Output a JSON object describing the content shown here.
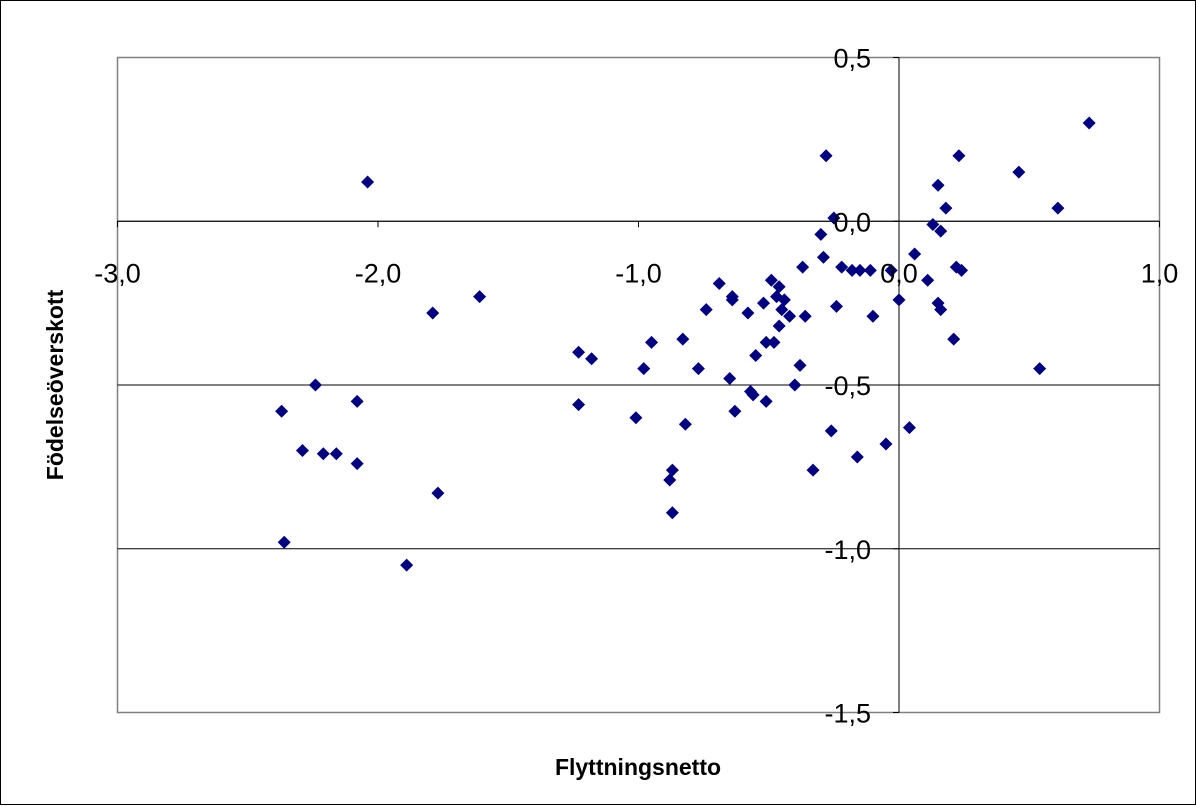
{
  "chart_data": {
    "type": "scatter",
    "title": "",
    "xlabel": "Flyttningsnetto",
    "ylabel": "Födelseöverskott",
    "xlim": [
      -3.0,
      1.0
    ],
    "ylim": [
      -1.5,
      0.5
    ],
    "x_ticks": [
      -3.0,
      -2.0,
      -1.0,
      0.0,
      1.0
    ],
    "y_ticks": [
      -1.5,
      -1.0,
      -0.5,
      0.0,
      0.5
    ],
    "x_tick_labels": [
      "-3,0",
      "-2,0",
      "-1,0",
      "0,0",
      "1,0"
    ],
    "y_tick_labels": [
      "-1,5",
      "-1,0",
      "-0,5",
      "0,0",
      "0,5"
    ],
    "grid": "horizontal",
    "legend": "none",
    "marker": "diamond",
    "colors": {
      "marker": "#000080",
      "axis": "#000000",
      "grid": "#000000"
    },
    "series": [
      {
        "points": [
          [
            -2.04,
            0.12
          ],
          [
            -2.37,
            -0.58
          ],
          [
            -2.36,
            -0.98
          ],
          [
            -2.29,
            -0.7
          ],
          [
            -2.24,
            -0.5
          ],
          [
            -2.21,
            -0.71
          ],
          [
            -2.16,
            -0.71
          ],
          [
            -2.08,
            -0.55
          ],
          [
            -2.08,
            -0.74
          ],
          [
            -1.79,
            -0.28
          ],
          [
            -1.77,
            -0.83
          ],
          [
            -1.89,
            -1.05
          ],
          [
            -1.61,
            -0.23
          ],
          [
            -1.23,
            -0.4
          ],
          [
            -1.18,
            -0.42
          ],
          [
            -1.23,
            -0.56
          ],
          [
            -1.01,
            -0.6
          ],
          [
            -0.98,
            -0.45
          ],
          [
            -0.95,
            -0.37
          ],
          [
            -0.88,
            -0.79
          ],
          [
            -0.87,
            -0.76
          ],
          [
            -0.87,
            -0.89
          ],
          [
            -0.83,
            -0.36
          ],
          [
            -0.82,
            -0.62
          ],
          [
            -0.77,
            -0.45
          ],
          [
            -0.74,
            -0.27
          ],
          [
            -0.69,
            -0.19
          ],
          [
            -0.64,
            -0.23
          ],
          [
            -0.64,
            -0.24
          ],
          [
            -0.65,
            -0.48
          ],
          [
            -0.63,
            -0.58
          ],
          [
            -0.58,
            -0.28
          ],
          [
            -0.57,
            -0.52
          ],
          [
            -0.56,
            -0.53
          ],
          [
            -0.55,
            -0.41
          ],
          [
            -0.52,
            -0.25
          ],
          [
            -0.51,
            -0.37
          ],
          [
            -0.51,
            -0.55
          ],
          [
            -0.49,
            -0.18
          ],
          [
            -0.48,
            -0.37
          ],
          [
            -0.47,
            -0.23
          ],
          [
            -0.46,
            -0.2
          ],
          [
            -0.46,
            -0.32
          ],
          [
            -0.45,
            -0.27
          ],
          [
            -0.44,
            -0.24
          ],
          [
            -0.42,
            -0.29
          ],
          [
            -0.4,
            -0.5
          ],
          [
            -0.38,
            -0.44
          ],
          [
            -0.37,
            -0.14
          ],
          [
            -0.36,
            -0.29
          ],
          [
            -0.33,
            -0.76
          ],
          [
            -0.3,
            -0.04
          ],
          [
            -0.29,
            -0.11
          ],
          [
            -0.28,
            0.2
          ],
          [
            -0.26,
            -0.64
          ],
          [
            -0.25,
            0.01
          ],
          [
            -0.24,
            -0.26
          ],
          [
            -0.22,
            -0.14
          ],
          [
            -0.18,
            -0.15
          ],
          [
            -0.16,
            -0.72
          ],
          [
            -0.15,
            -0.15
          ],
          [
            -0.11,
            -0.15
          ],
          [
            -0.1,
            -0.29
          ],
          [
            -0.05,
            -0.68
          ],
          [
            -0.03,
            -0.15
          ],
          [
            0.0,
            -0.24
          ],
          [
            0.04,
            -0.63
          ],
          [
            0.06,
            -0.1
          ],
          [
            0.11,
            -0.18
          ],
          [
            0.13,
            -0.01
          ],
          [
            0.15,
            -0.25
          ],
          [
            0.15,
            0.11
          ],
          [
            0.16,
            -0.03
          ],
          [
            0.16,
            -0.27
          ],
          [
            0.18,
            0.04
          ],
          [
            0.21,
            -0.36
          ],
          [
            0.22,
            -0.14
          ],
          [
            0.23,
            0.2
          ],
          [
            0.24,
            -0.15
          ],
          [
            0.46,
            0.15
          ],
          [
            0.54,
            -0.45
          ],
          [
            0.61,
            0.04
          ],
          [
            0.73,
            0.3
          ]
        ]
      }
    ]
  }
}
